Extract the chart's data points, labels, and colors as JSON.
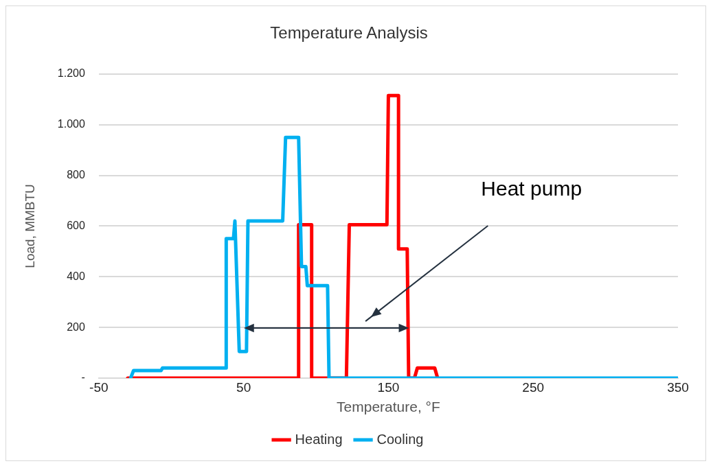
{
  "chart_data": {
    "type": "line",
    "title": "Temperature Analysis",
    "xlabel": "Temperature, °F",
    "ylabel": "Load, MMBTU",
    "series": [
      {
        "name": "Heating",
        "color": "#ff0000",
        "x": [
          -30,
          88,
          88,
          97,
          97,
          121,
          123,
          149,
          150,
          157,
          157,
          163,
          164,
          168,
          170,
          182,
          184
        ],
        "values": [
          0,
          0,
          605,
          605,
          0,
          0,
          605,
          605,
          1115,
          1115,
          510,
          510,
          0,
          0,
          40,
          40,
          0
        ]
      },
      {
        "name": "Cooling",
        "color": "#00b0f0",
        "x": [
          -28,
          -26,
          -7,
          -6,
          38,
          38,
          43,
          44,
          47,
          52,
          53,
          77,
          79,
          88,
          90,
          93,
          94,
          108,
          109,
          350
        ],
        "values": [
          0,
          30,
          30,
          40,
          40,
          550,
          550,
          620,
          105,
          105,
          620,
          620,
          950,
          950,
          440,
          440,
          365,
          365,
          0,
          0
        ]
      }
    ],
    "xlim": [
      -50,
      350
    ],
    "xticks": [
      -50,
      50,
      150,
      250,
      350
    ],
    "ylim": [
      0,
      1200
    ],
    "yticks": [
      {
        "value": 0,
        "label": "-"
      },
      200,
      400,
      600,
      800,
      {
        "value": 1000,
        "label": "1.000"
      },
      {
        "value": 1200,
        "label": "1.200"
      }
    ],
    "grid": "y",
    "legend": "bottom",
    "marker": "none",
    "line_style": "solid",
    "annotations": [
      "Heat pump"
    ]
  }
}
